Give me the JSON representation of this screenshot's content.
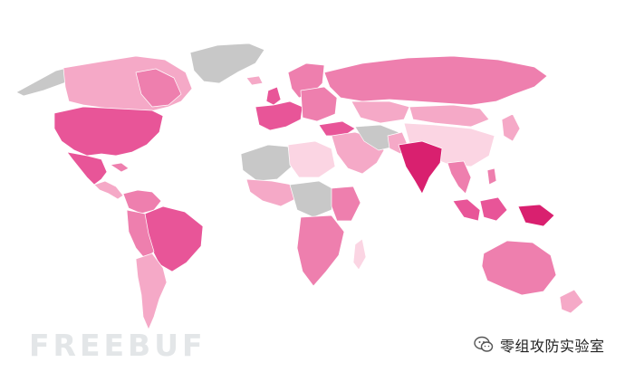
{
  "map": {
    "colors": {
      "no_data": "#c8c8c8",
      "level_1": "#fbd5e3",
      "level_2": "#f5a9c7",
      "level_3": "#ee7fae",
      "level_4": "#e85598",
      "level_5": "#d9206f"
    }
  },
  "watermark": {
    "brand": "FREEBUF"
  },
  "badge": {
    "icon": "wechat-icon",
    "label": "零组攻防实验室"
  }
}
